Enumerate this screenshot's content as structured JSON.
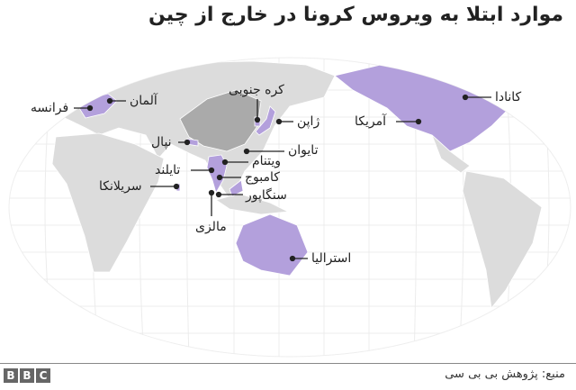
{
  "title": "موارد ابتلا به ویروس کرونا در خارج از چین",
  "colors": {
    "affected": "#b3a0dc",
    "china": "#aaaaaa",
    "land": "#dcdcdc",
    "graticule": "#e8e8e8"
  },
  "labels": {
    "france": "فرانسه",
    "germany": "آلمان",
    "south_korea": "کره جنوبی",
    "japan": "ژاپن",
    "taiwan": "تایوان",
    "nepal": "نپال",
    "vietnam": "ویتنام",
    "thailand": "تایلند",
    "cambodia": "کامبوج",
    "sri_lanka": "سریلانکا",
    "singapore": "سنگاپور",
    "malaysia": "مالزی",
    "canada": "کانادا",
    "usa": "آمریکا",
    "australia": "استرالیا"
  },
  "footer": {
    "source": "منبع: پژوهش بی بی سی",
    "logo": [
      "B",
      "B",
      "C"
    ]
  }
}
